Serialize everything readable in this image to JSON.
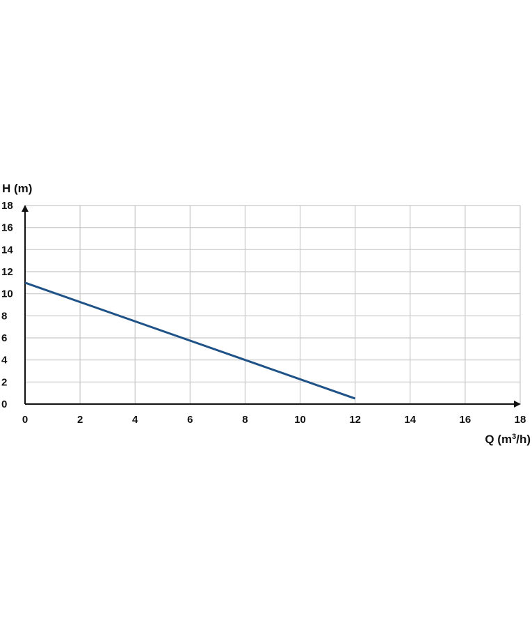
{
  "chart_data": {
    "type": "line",
    "xlabel": "Q (m",
    "xlabel_sup": "3",
    "xlabel_end": "/h)",
    "ylabel": "H (m)",
    "xlim": [
      0,
      18
    ],
    "ylim": [
      0,
      18
    ],
    "x_ticks": [
      0,
      2,
      4,
      6,
      8,
      10,
      12,
      14,
      16,
      18
    ],
    "y_ticks": [
      0,
      2,
      4,
      6,
      8,
      10,
      12,
      14,
      16,
      18
    ],
    "grid": true,
    "series": [
      {
        "color": "#1f5287",
        "x": [
          0,
          12
        ],
        "y": [
          11,
          0.5
        ]
      }
    ],
    "colors": {
      "grid": "#c8c8c8",
      "axis": "#111111"
    }
  }
}
